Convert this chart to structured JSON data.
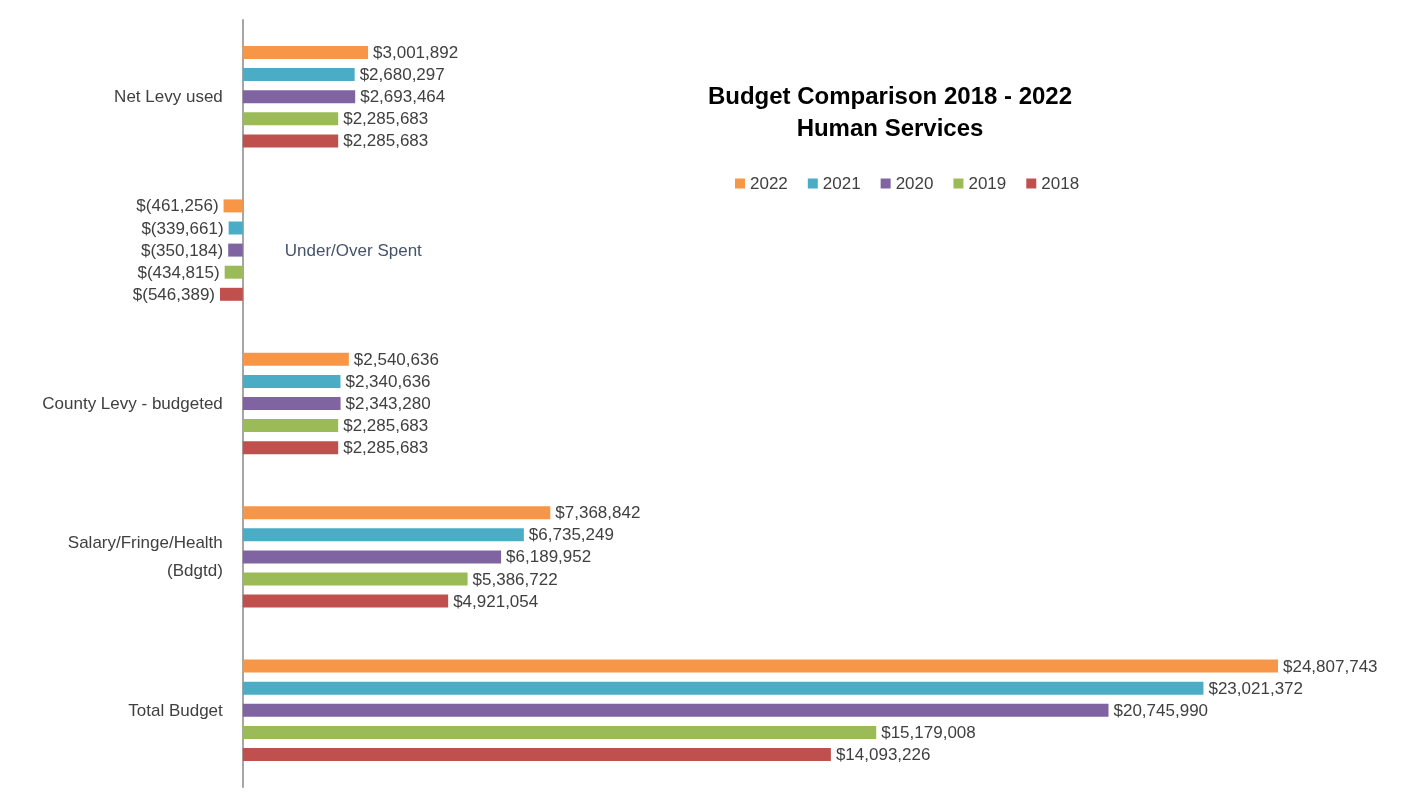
{
  "chart_data": {
    "type": "bar",
    "orientation": "horizontal",
    "title": "Budget Comparison 2018 - 2022",
    "subtitle": "Human Services",
    "categories": [
      "Net Levy used",
      "Under/Over Spent",
      "County Levy - budgeted",
      "Salary/Fringe/Health (Bdgtd)",
      "Total Budget"
    ],
    "series": [
      {
        "name": "2022",
        "color": "#f79646",
        "values": [
          3001892,
          -461256,
          2540636,
          7368842,
          24807743
        ],
        "value_labels": [
          "$3,001,892",
          "$(461,256)",
          "$2,540,636",
          "$7,368,842",
          "$24,807,743"
        ]
      },
      {
        "name": "2021",
        "color": "#4bacc6",
        "values": [
          2680297,
          -339661,
          2340636,
          6735249,
          23021372
        ],
        "value_labels": [
          "$2,680,297",
          "$(339,661)",
          "$2,340,636",
          "$6,735,249",
          "$23,021,372"
        ]
      },
      {
        "name": "2020",
        "color": "#8064a2",
        "values": [
          2693464,
          -350184,
          2343280,
          6189952,
          20745990
        ],
        "value_labels": [
          "$2,693,464",
          "$(350,184)",
          "$2,343,280",
          "$6,189,952",
          "$20,745,990"
        ]
      },
      {
        "name": "2019",
        "color": "#9bbb59",
        "values": [
          2285683,
          -434815,
          2285683,
          5386722,
          15179008
        ],
        "value_labels": [
          "$2,285,683",
          "$(434,815)",
          "$2,285,683",
          "$5,386,722",
          "$15,179,008"
        ]
      },
      {
        "name": "2018",
        "color": "#c0504d",
        "values": [
          2285683,
          -546389,
          2285683,
          4921054,
          14093226
        ],
        "value_labels": [
          "$2,285,683",
          "$(546,389)",
          "$2,285,683",
          "$4,921,054",
          "$14,093,226"
        ]
      }
    ],
    "legend": "top right"
  }
}
